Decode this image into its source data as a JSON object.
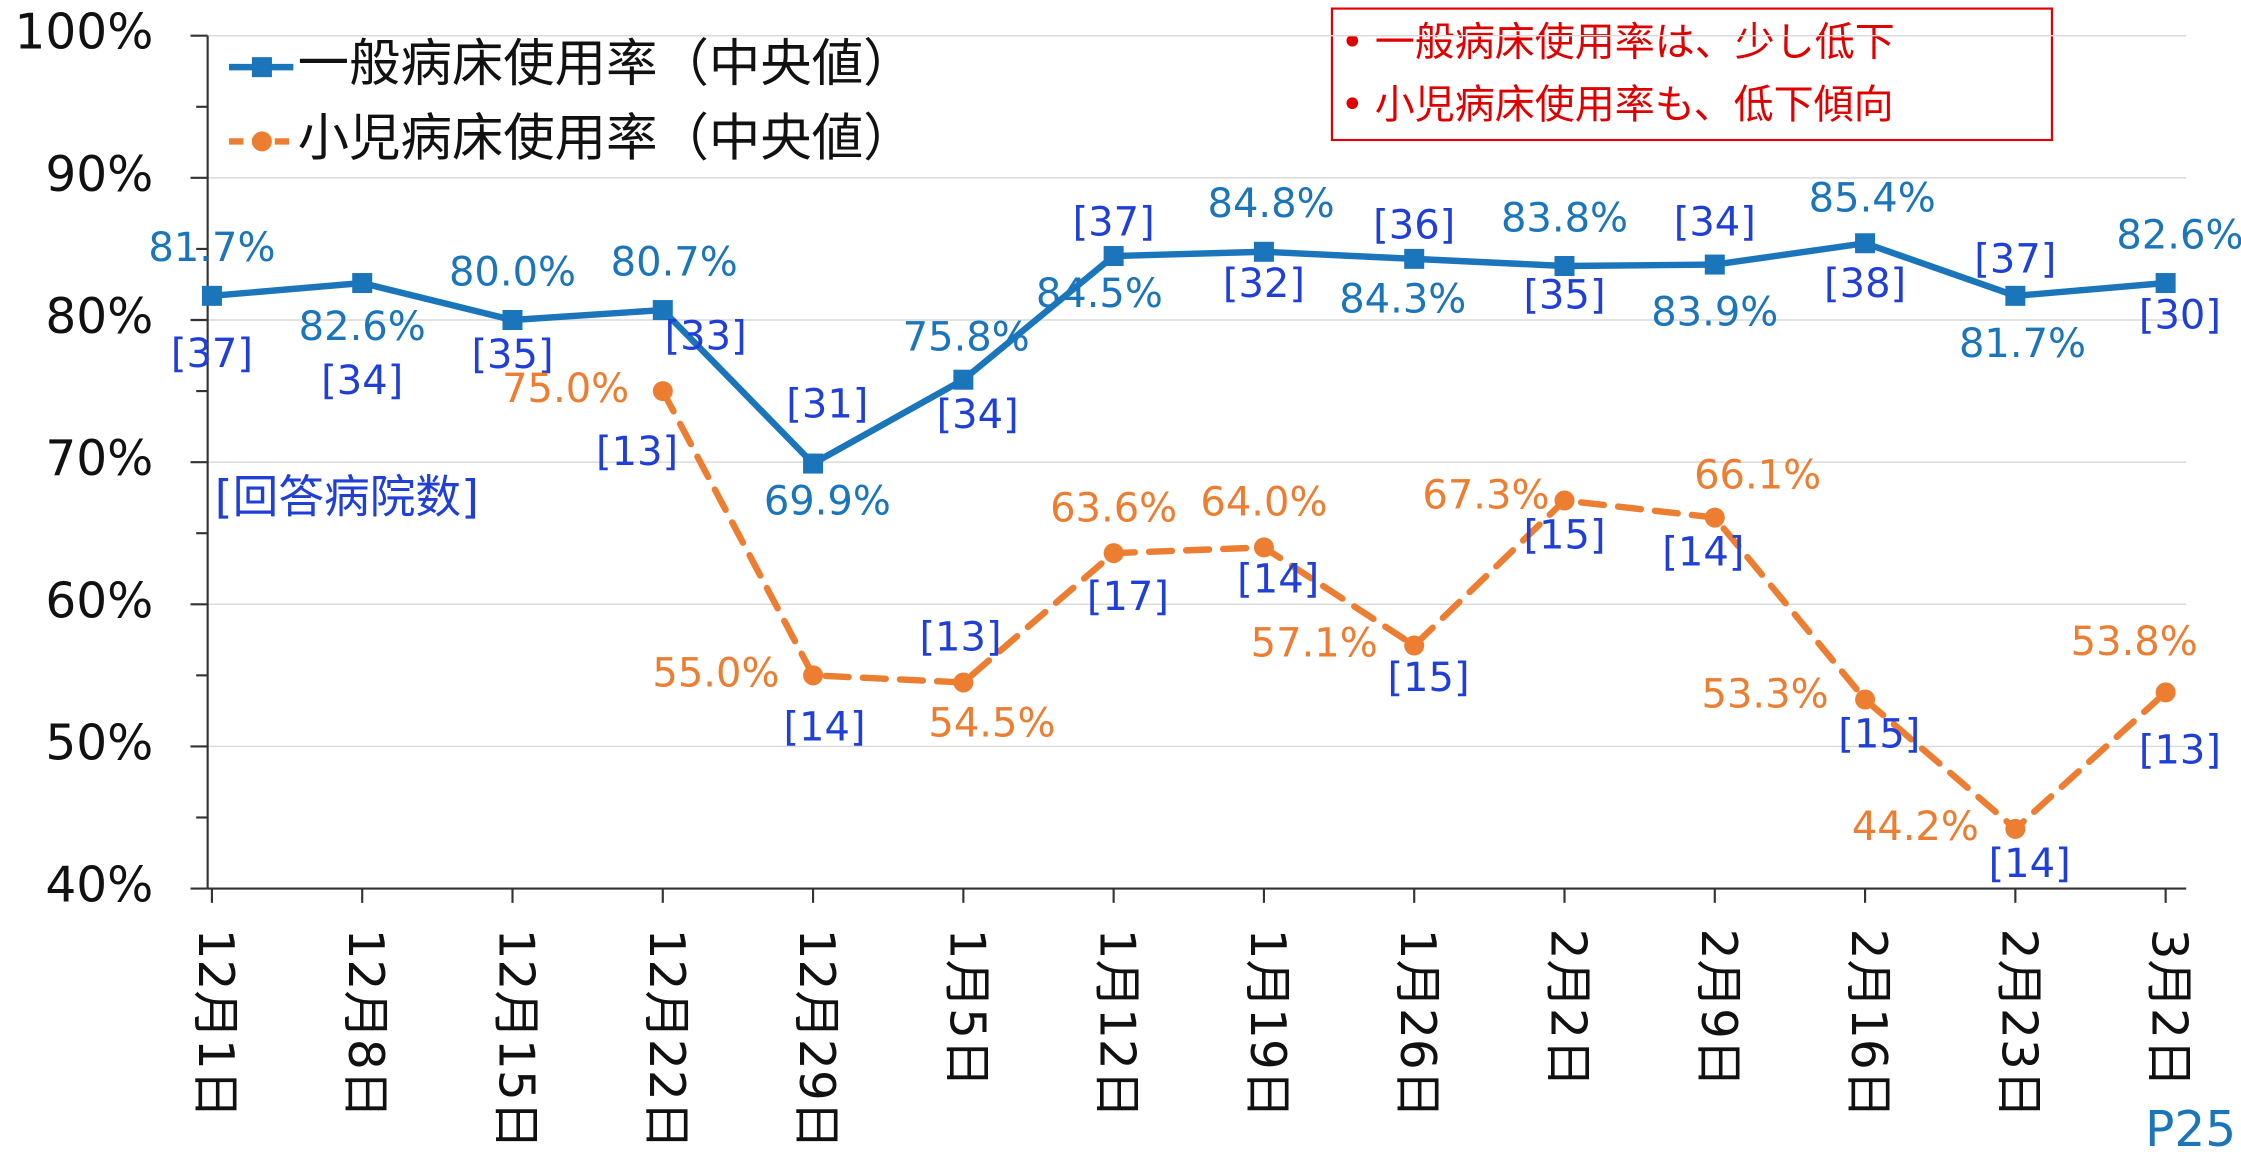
{
  "chart_data": {
    "type": "line",
    "categories": [
      "12月1日",
      "12月8日",
      "12月15日",
      "12月22日",
      "12月29日",
      "1月5日",
      "1月12日",
      "1月19日",
      "1月26日",
      "2月2日",
      "2月9日",
      "2月16日",
      "2月23日",
      "3月2日"
    ],
    "series": [
      {
        "name": "一般病床使用率（中央値）",
        "color": "#1a75bb",
        "dash": false,
        "marker": "square",
        "values": [
          81.7,
          82.6,
          80.0,
          80.7,
          69.9,
          75.8,
          84.5,
          84.8,
          84.3,
          83.8,
          83.9,
          85.4,
          81.7,
          82.6
        ],
        "value_labels": [
          "81.7%",
          "82.6%",
          "80.0%",
          "80.7%",
          "69.9%",
          "75.8%",
          "84.5%",
          "84.8%",
          "84.3%",
          "83.8%",
          "83.9%",
          "85.4%",
          "81.7%",
          "82.6%"
        ],
        "count_labels": [
          "[37]",
          "[34]",
          "[35]",
          "[33]",
          "[31]",
          "[34]",
          "[37]",
          "[32]",
          "[36]",
          "[35]",
          "[34]",
          "[38]",
          "[37]",
          "[30]"
        ]
      },
      {
        "name": "小児病床使用率（中央値）",
        "color": "#ed7d31",
        "dash": true,
        "marker": "circle",
        "values": [
          null,
          null,
          null,
          75.0,
          55.0,
          54.5,
          63.6,
          64.0,
          57.1,
          67.3,
          66.1,
          53.3,
          44.2,
          53.8
        ],
        "value_labels": [
          null,
          null,
          null,
          "75.0%",
          "55.0%",
          "54.5%",
          "63.6%",
          "64.0%",
          "57.1%",
          "67.3%",
          "66.1%",
          "53.3%",
          "44.2%",
          "53.8%"
        ],
        "count_labels": [
          null,
          null,
          null,
          "[13]",
          "[14]",
          "[13]",
          "[17]",
          "[14]",
          "[15]",
          "[15]",
          "[14]",
          "[15]",
          "[14]",
          "[13]"
        ]
      }
    ],
    "ylim": [
      40,
      100
    ],
    "yticks": [
      {
        "value": 40,
        "label": "40%"
      },
      {
        "value": 50,
        "label": "50%"
      },
      {
        "value": 60,
        "label": "60%"
      },
      {
        "value": 70,
        "label": "70%"
      },
      {
        "value": 80,
        "label": "80%"
      },
      {
        "value": 90,
        "label": "90%"
      },
      {
        "value": 100,
        "label": "100%"
      }
    ],
    "grid": true,
    "legend": "top-left",
    "annotations": [
      "[回答病院数]"
    ],
    "callout": [
      "一般病床使用率は、少し低下",
      "小児病床使用率も、低下傾向"
    ],
    "page_number": "P25"
  }
}
